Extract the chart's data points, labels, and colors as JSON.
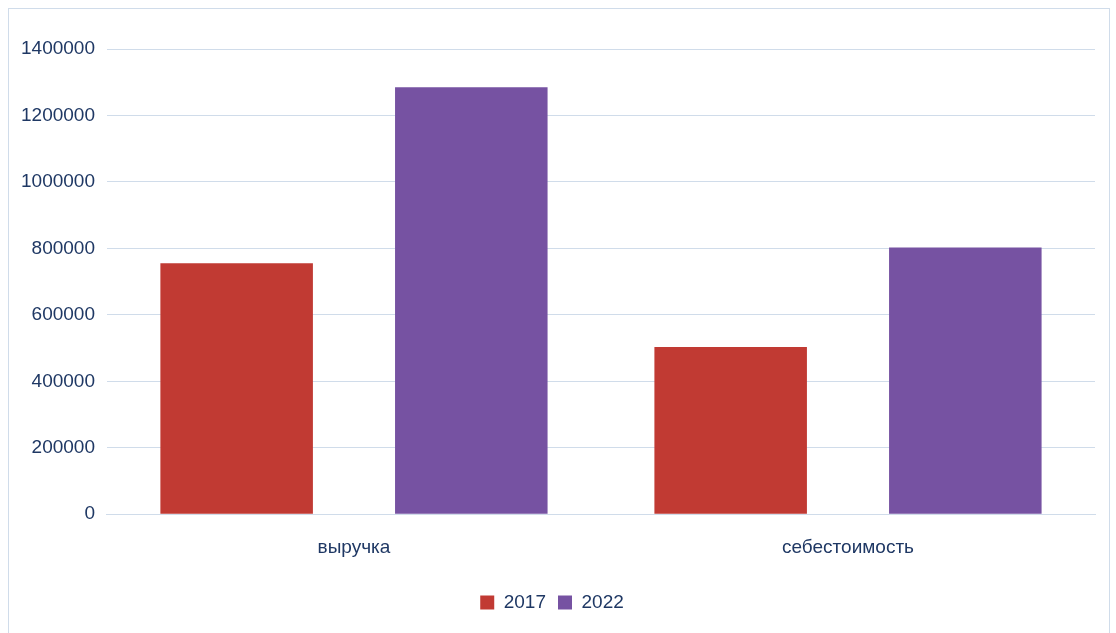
{
  "chart_data": {
    "type": "bar",
    "categories": [
      "выручка",
      "себестоимость"
    ],
    "series": [
      {
        "name": "2017",
        "color": "#c13a33",
        "values": [
          755000,
          503000
        ]
      },
      {
        "name": "2022",
        "color": "#7652a2",
        "values": [
          1285000,
          803000
        ]
      }
    ],
    "ylim": [
      0,
      1400000
    ],
    "yticks": [
      0,
      200000,
      400000,
      600000,
      800000,
      1000000,
      1200000,
      1400000
    ],
    "grid": "y",
    "legend": "bottom"
  }
}
